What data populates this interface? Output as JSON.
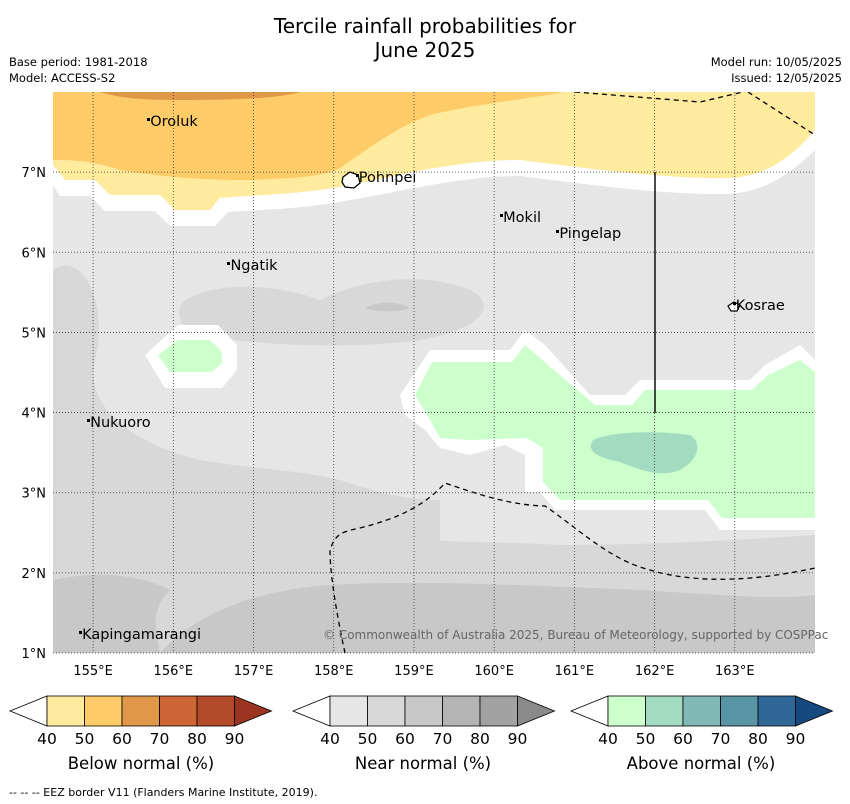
{
  "title": {
    "line1": "Tercile rainfall probabilities for",
    "line2": "June 2025"
  },
  "meta": {
    "base_period": "Base period: 1981-2018",
    "model": "Model: ACCESS-S2",
    "model_run": "Model run: 10/05/2025",
    "issued": "Issued: 12/05/2025"
  },
  "map": {
    "extent": {
      "lon": [
        154.5,
        164.0
      ],
      "lat": [
        1.0,
        8.0
      ]
    },
    "x_ticks": [
      "155°E",
      "156°E",
      "157°E",
      "158°E",
      "159°E",
      "160°E",
      "161°E",
      "162°E",
      "163°E"
    ],
    "y_ticks": [
      "1°N",
      "2°N",
      "3°N",
      "4°N",
      "5°N",
      "6°N",
      "7°N"
    ],
    "places": [
      {
        "name": "Oroluk",
        "lon": 155.7,
        "lat": 7.6
      },
      {
        "name": "Pohnpei",
        "lon": 158.3,
        "lat": 6.9
      },
      {
        "name": "Mokil",
        "lon": 160.1,
        "lat": 6.4
      },
      {
        "name": "Pingelap",
        "lon": 160.8,
        "lat": 6.2
      },
      {
        "name": "Ngatik",
        "lon": 156.7,
        "lat": 5.8
      },
      {
        "name": "Kosrae",
        "lon": 163.0,
        "lat": 5.3
      },
      {
        "name": "Nukuoro",
        "lon": 154.95,
        "lat": 3.85
      },
      {
        "name": "Kapingamarangi",
        "lon": 154.85,
        "lat": 1.2
      }
    ],
    "copyright": "© Commonwealth of Australia 2025, Bureau of Meteorology, supported by COSPPac",
    "grid": true
  },
  "colorbars": [
    {
      "label": "Below normal (%)",
      "ticks": [
        "40",
        "50",
        "60",
        "70",
        "80",
        "90"
      ],
      "colors": [
        "#ffffff",
        "#ffeb9e",
        "#fdcb68",
        "#e09748",
        "#cd6634",
        "#b34a2a",
        "#9b3522"
      ]
    },
    {
      "label": "Near normal (%)",
      "ticks": [
        "40",
        "50",
        "60",
        "70",
        "80",
        "90"
      ],
      "colors": [
        "#ffffff",
        "#e6e6e6",
        "#d8d8d8",
        "#c8c8c8",
        "#b4b4b4",
        "#a2a2a2",
        "#8a8a8a"
      ]
    },
    {
      "label": "Above normal (%)",
      "ticks": [
        "40",
        "50",
        "60",
        "70",
        "80",
        "90"
      ],
      "colors": [
        "#ffffff",
        "#ccffcc",
        "#a3dbc1",
        "#80b8b5",
        "#5a95a6",
        "#2f6797",
        "#16497f"
      ]
    }
  ],
  "footnote": "--  --  -- EEZ border V11 (Flanders Marine Institute, 2019)."
}
